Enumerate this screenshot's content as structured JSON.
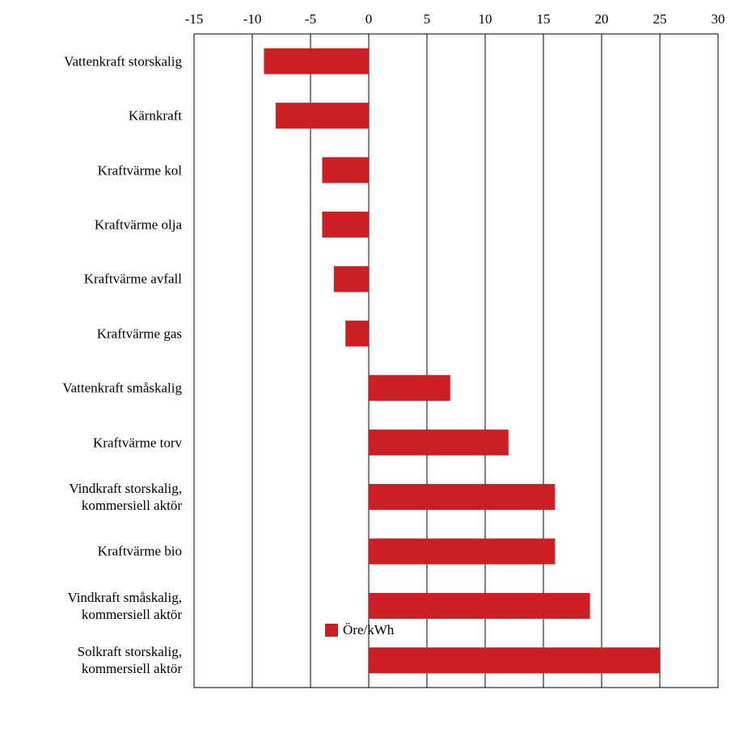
{
  "chart_data": {
    "type": "bar",
    "orientation": "horizontal",
    "categories": [
      "Vattenkraft storskalig",
      "Kärnkraft",
      "Kraftvärme kol",
      "Kraftvärme olja",
      "Kraftvärme avfall",
      "Kraftvärme gas",
      "Vattenkraft småskalig",
      "Kraftvärme torv",
      "Vindkraft storskalig,\nkommersiell aktör",
      "Kraftvärme bio",
      "Vindkraft småskalig,\nkommersiell aktör",
      "Solkraft storskalig,\nkommersiell aktör"
    ],
    "series": [
      {
        "name": "Öre/kWh",
        "color": "#cc1f24",
        "values": [
          -9,
          -8,
          -4,
          -4,
          -3,
          -2,
          7,
          12,
          16,
          16,
          19,
          25
        ]
      }
    ],
    "xlim": [
      -15,
      30
    ],
    "xticks": [
      -15,
      -10,
      -5,
      0,
      5,
      10,
      15,
      20,
      25,
      30
    ],
    "grid": true,
    "legend": "bottom"
  }
}
